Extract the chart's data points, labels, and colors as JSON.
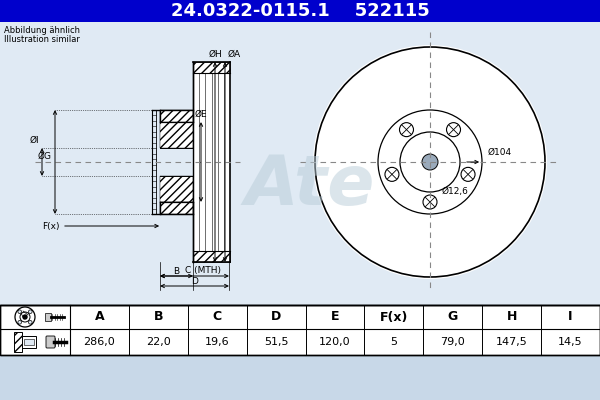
{
  "title_part_number": "24.0322-0115.1",
  "title_ref_number": "522115",
  "subtitle_line1": "Abbildung ähnlich",
  "subtitle_line2": "Illustration similar",
  "title_bg": "#0000cc",
  "title_fg": "#ffffff",
  "bg_color": "#c8d8e8",
  "diagram_bg": "#e0eaf4",
  "table_bg": "#ffffff",
  "line_color": "#000000",
  "dim_color": "#000000",
  "cross_color": "#888888",
  "hatch_color": "#000000",
  "table_headers": [
    "A",
    "B",
    "C",
    "D",
    "E",
    "F(x)",
    "G",
    "H",
    "I"
  ],
  "table_values": [
    "286,0",
    "22,0",
    "19,6",
    "51,5",
    "120,0",
    "5",
    "79,0",
    "147,5",
    "14,5"
  ],
  "num_bolts": 5,
  "d104_label": "Ø104",
  "d126_label": "Ø12,6"
}
